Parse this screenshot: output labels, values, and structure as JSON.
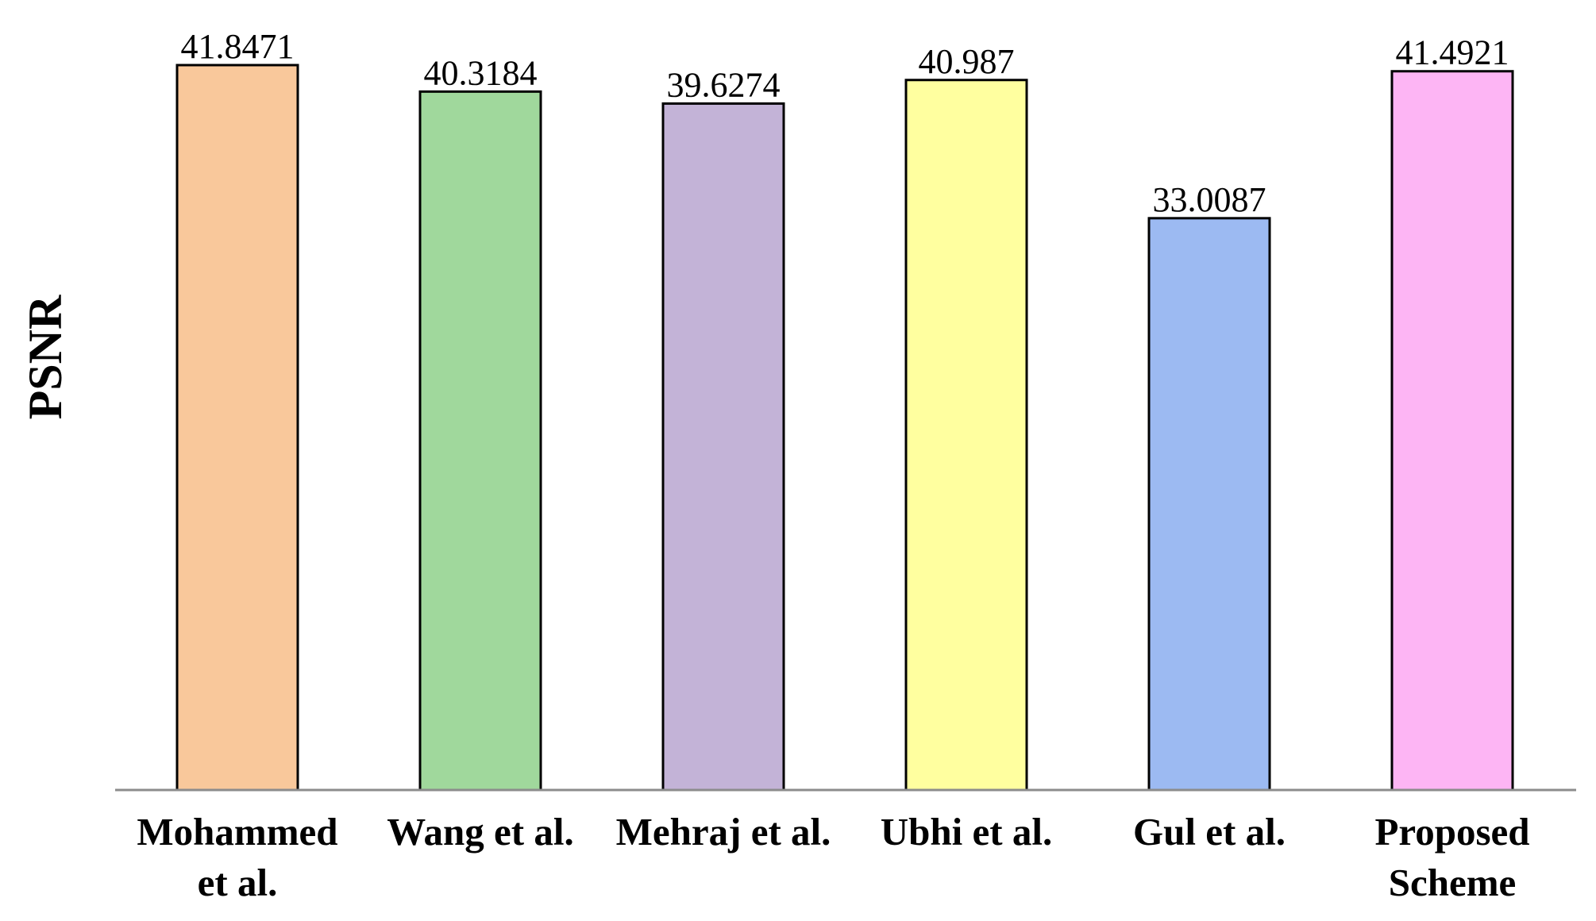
{
  "chart_data": {
    "type": "bar",
    "ylabel": "PSNR",
    "xlabel": "",
    "categories": [
      [
        "Mohammed",
        "et al."
      ],
      [
        "Wang et al."
      ],
      [
        "Mehraj et al."
      ],
      [
        "Ubhi et al."
      ],
      [
        "Gul et al."
      ],
      [
        "Proposed",
        "Scheme"
      ]
    ],
    "values": [
      41.8471,
      40.3184,
      39.6274,
      40.987,
      33.0087,
      41.4921
    ],
    "value_labels": [
      "41.8471",
      "40.3184",
      "39.6274",
      "40.987",
      "33.0087",
      "41.4921"
    ],
    "colors": [
      "#f9c89b",
      "#a0d89c",
      "#c3b3d7",
      "#ffff9f",
      "#9cbaf2",
      "#fdb5f4"
    ],
    "ylim": [
      0,
      43
    ],
    "grid": false,
    "legend": false
  }
}
